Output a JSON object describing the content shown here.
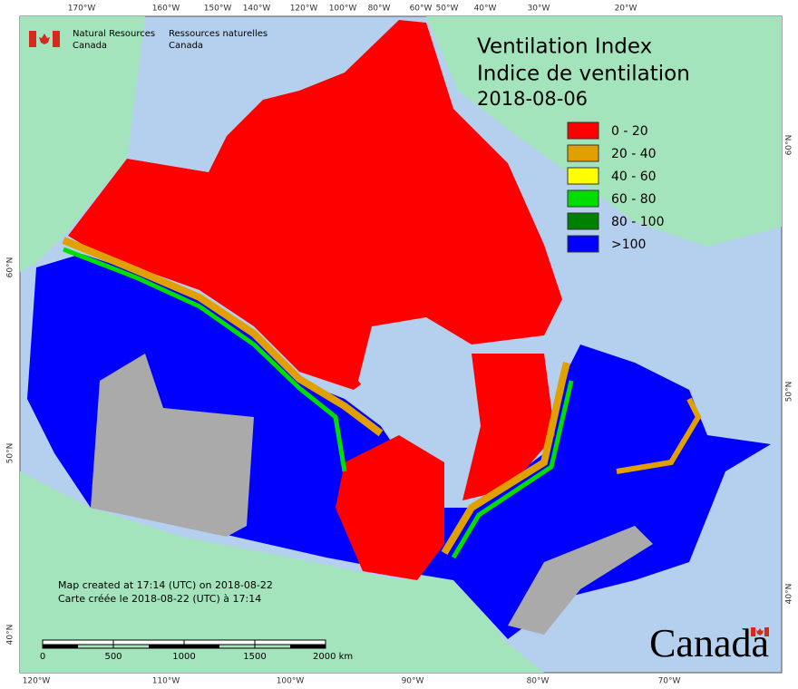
{
  "header": {
    "en_line1": "Natural Resources",
    "en_line2": "Canada",
    "fr_line1": "Ressources naturelles",
    "fr_line2": "Canada"
  },
  "title": {
    "line1": "Ventilation Index",
    "line2": "Indice de ventilation",
    "date": "2018-08-06"
  },
  "legend": [
    {
      "label": "0 - 20",
      "color": "#ff0000"
    },
    {
      "label": "20 - 40",
      "color": "#e0a000"
    },
    {
      "label": "40 - 60",
      "color": "#ffff00"
    },
    {
      "label": "60 - 80",
      "color": "#00dd00"
    },
    {
      "label": "80 - 100",
      "color": "#008000"
    },
    {
      "label": ">100",
      "color": "#0000ff"
    }
  ],
  "graticule": {
    "top": [
      "170°W",
      "160°W",
      "150°W",
      "140°W",
      "120°W",
      "100°W",
      "80°W",
      "60°W",
      "50°W",
      "40°W",
      "30°W",
      "20°W"
    ],
    "bottom": [
      "120°W",
      "110°W",
      "100°W",
      "90°W",
      "80°W",
      "70°W"
    ],
    "left": [
      "60°N",
      "50°N",
      "40°N"
    ],
    "right": [
      "60°N",
      "50°N",
      "40°N"
    ]
  },
  "notes": {
    "line1": "Map created at 17:14 (UTC) on 2018-08-22",
    "line2": "Carte créée le 2018-08-22 (UTC) à 17:14"
  },
  "scale_bar": [
    "0",
    "500",
    "1000",
    "1500",
    "2000 km"
  ],
  "wordmark": "Canada"
}
